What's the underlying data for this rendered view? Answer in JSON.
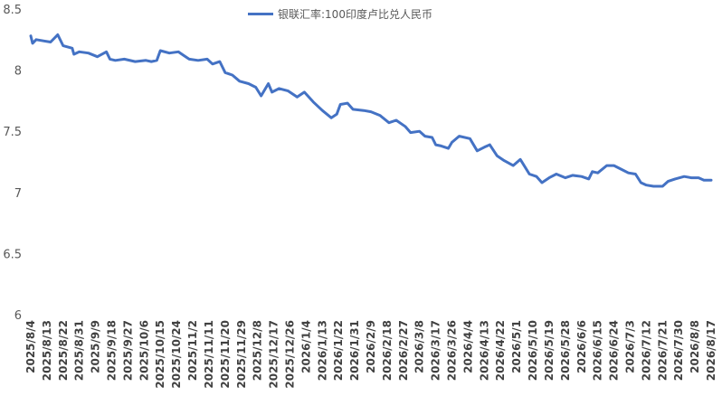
{
  "chart_data": {
    "type": "line",
    "legend": "top-center",
    "grid": false,
    "color": "#4472C4",
    "series": [
      {
        "name": "银联汇率:100印度卢比兑人民币",
        "points": [
          [
            "2025/8/4",
            8.28
          ],
          [
            "2025/8/5",
            8.22
          ],
          [
            "2025/8/7",
            8.25
          ],
          [
            "2025/8/11",
            8.24
          ],
          [
            "2025/8/15",
            8.23
          ],
          [
            "2025/8/19",
            8.29
          ],
          [
            "2025/8/22",
            8.2
          ],
          [
            "2025/8/27",
            8.18
          ],
          [
            "2025/8/28",
            8.13
          ],
          [
            "2025/8/31",
            8.15
          ],
          [
            "2025/9/5",
            8.14
          ],
          [
            "2025/9/10",
            8.11
          ],
          [
            "2025/9/15",
            8.15
          ],
          [
            "2025/9/17",
            8.09
          ],
          [
            "2025/9/20",
            8.08
          ],
          [
            "2025/9/25",
            8.09
          ],
          [
            "2025/10/1",
            8.07
          ],
          [
            "2025/10/7",
            8.08
          ],
          [
            "2025/10/10",
            8.07
          ],
          [
            "2025/10/13",
            8.08
          ],
          [
            "2025/10/15",
            8.16
          ],
          [
            "2025/10/20",
            8.14
          ],
          [
            "2025/10/25",
            8.15
          ],
          [
            "2025/10/28",
            8.12
          ],
          [
            "2025/10/31",
            8.09
          ],
          [
            "2025/11/5",
            8.08
          ],
          [
            "2025/11/10",
            8.09
          ],
          [
            "2025/11/13",
            8.05
          ],
          [
            "2025/11/17",
            8.07
          ],
          [
            "2025/11/20",
            7.98
          ],
          [
            "2025/11/24",
            7.96
          ],
          [
            "2025/11/28",
            7.91
          ],
          [
            "2025/12/3",
            7.89
          ],
          [
            "2025/12/7",
            7.86
          ],
          [
            "2025/12/10",
            7.79
          ],
          [
            "2025/12/14",
            7.89
          ],
          [
            "2025/12/16",
            7.82
          ],
          [
            "2025/12/20",
            7.85
          ],
          [
            "2025/12/25",
            7.83
          ],
          [
            "2025/12/30",
            7.78
          ],
          [
            "2026/1/3",
            7.82
          ],
          [
            "2026/1/8",
            7.74
          ],
          [
            "2026/1/13",
            7.67
          ],
          [
            "2026/1/18",
            7.61
          ],
          [
            "2026/1/21",
            7.64
          ],
          [
            "2026/1/23",
            7.72
          ],
          [
            "2026/1/27",
            7.73
          ],
          [
            "2026/1/30",
            7.68
          ],
          [
            "2026/2/5",
            7.67
          ],
          [
            "2026/2/9",
            7.66
          ],
          [
            "2026/2/14",
            7.63
          ],
          [
            "2026/2/19",
            7.57
          ],
          [
            "2026/2/23",
            7.59
          ],
          [
            "2026/2/28",
            7.54
          ],
          [
            "2026/3/3",
            7.49
          ],
          [
            "2026/3/8",
            7.5
          ],
          [
            "2026/3/11",
            7.46
          ],
          [
            "2026/3/15",
            7.45
          ],
          [
            "2026/3/17",
            7.39
          ],
          [
            "2026/3/20",
            7.38
          ],
          [
            "2026/3/24",
            7.36
          ],
          [
            "2026/3/26",
            7.41
          ],
          [
            "2026/3/30",
            7.46
          ],
          [
            "2026/4/5",
            7.44
          ],
          [
            "2026/4/9",
            7.34
          ],
          [
            "2026/4/13",
            7.37
          ],
          [
            "2026/4/16",
            7.39
          ],
          [
            "2026/4/20",
            7.3
          ],
          [
            "2026/4/24",
            7.26
          ],
          [
            "2026/4/29",
            7.22
          ],
          [
            "2026/5/3",
            7.27
          ],
          [
            "2026/5/8",
            7.15
          ],
          [
            "2026/5/12",
            7.13
          ],
          [
            "2026/5/15",
            7.08
          ],
          [
            "2026/5/19",
            7.12
          ],
          [
            "2026/5/23",
            7.15
          ],
          [
            "2026/5/28",
            7.12
          ],
          [
            "2026/6/1",
            7.14
          ],
          [
            "2026/6/6",
            7.13
          ],
          [
            "2026/6/10",
            7.11
          ],
          [
            "2026/6/12",
            7.17
          ],
          [
            "2026/6/15",
            7.16
          ],
          [
            "2026/6/20",
            7.22
          ],
          [
            "2026/6/24",
            7.22
          ],
          [
            "2026/6/28",
            7.19
          ],
          [
            "2026/7/2",
            7.16
          ],
          [
            "2026/7/6",
            7.15
          ],
          [
            "2026/7/9",
            7.08
          ],
          [
            "2026/7/12",
            7.06
          ],
          [
            "2026/7/16",
            7.05
          ],
          [
            "2026/7/21",
            7.05
          ],
          [
            "2026/7/24",
            7.09
          ],
          [
            "2026/7/28",
            7.11
          ],
          [
            "2026/8/2",
            7.13
          ],
          [
            "2026/8/6",
            7.12
          ],
          [
            "2026/8/10",
            7.12
          ],
          [
            "2026/8/13",
            7.1
          ],
          [
            "2026/8/17",
            7.1
          ]
        ]
      }
    ],
    "ylim": [
      6,
      8.5
    ],
    "yticks": [
      "6",
      "6.5",
      "7",
      "7.5",
      "8",
      "8.5"
    ],
    "x_tick_labels": [
      "2025/8/4",
      "2025/8/13",
      "2025/8/22",
      "2025/8/31",
      "2025/9/9",
      "2025/9/18",
      "2025/9/27",
      "2025/10/6",
      "2025/10/15",
      "2025/10/24",
      "2025/11/2",
      "2025/11/11",
      "2025/11/20",
      "2025/11/29",
      "2025/12/8",
      "2025/12/17",
      "2025/12/26",
      "2026/1/4",
      "2026/1/13",
      "2026/1/22",
      "2026/1/31",
      "2026/2/9",
      "2026/2/18",
      "2026/2/27",
      "2026/3/8",
      "2026/3/17",
      "2026/3/26",
      "2026/4/4",
      "2026/4/13",
      "2026/4/22",
      "2026/5/1",
      "2026/5/10",
      "2026/5/19",
      "2026/5/28",
      "2026/6/6",
      "2026/6/15",
      "2026/6/24",
      "2026/7/3",
      "2026/7/12",
      "2026/7/21",
      "2026/7/30",
      "2026/8/8",
      "2026/8/17"
    ]
  }
}
